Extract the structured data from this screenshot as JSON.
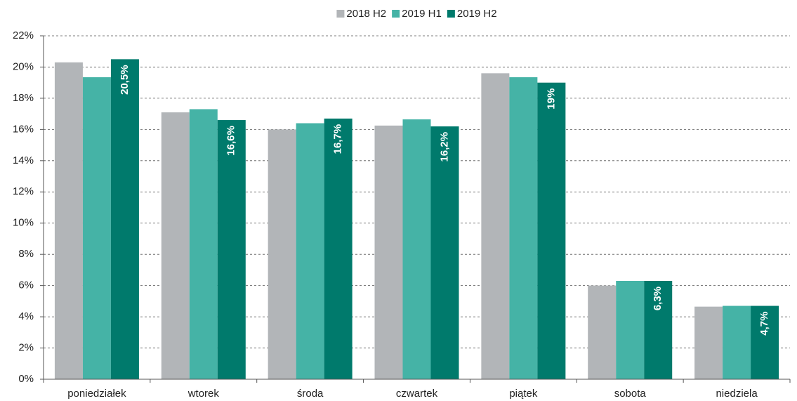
{
  "chart_data": {
    "type": "bar",
    "categories": [
      "poniedziałek",
      "wtorek",
      "środa",
      "czwartek",
      "piątek",
      "sobota",
      "niedziela"
    ],
    "series": [
      {
        "name": "2018 H2",
        "color": "#b2b5b8",
        "values": [
          20.3,
          17.1,
          16.0,
          16.25,
          19.6,
          6.0,
          4.65
        ]
      },
      {
        "name": "2019 H1",
        "color": "#45b3a6",
        "values": [
          19.35,
          17.3,
          16.4,
          16.65,
          19.35,
          6.3,
          4.7
        ]
      },
      {
        "name": "2019 H2",
        "color": "#007a6c",
        "values": [
          20.5,
          16.6,
          16.7,
          16.2,
          19,
          6.3,
          4.7
        ],
        "value_labels": [
          "20,5%",
          "16,6%",
          "16,7%",
          "16,2%",
          "19%",
          "6,3%",
          "4,7%"
        ]
      }
    ],
    "ylim": [
      0,
      22
    ],
    "yticks": [
      {
        "value": 0,
        "label": "0%"
      },
      {
        "value": 2,
        "label": "2%"
      },
      {
        "value": 4,
        "label": "4%"
      },
      {
        "value": 6,
        "label": "6%"
      },
      {
        "value": 8,
        "label": "8%"
      },
      {
        "value": 10,
        "label": "10%"
      },
      {
        "value": 12,
        "label": "12%"
      },
      {
        "value": 14,
        "label": "14%"
      },
      {
        "value": 16,
        "label": "16%"
      },
      {
        "value": 18,
        "label": "18%"
      },
      {
        "value": 20,
        "label": "20%"
      },
      {
        "value": 22,
        "label": "22%"
      }
    ],
    "grid": true,
    "legend": "top"
  }
}
